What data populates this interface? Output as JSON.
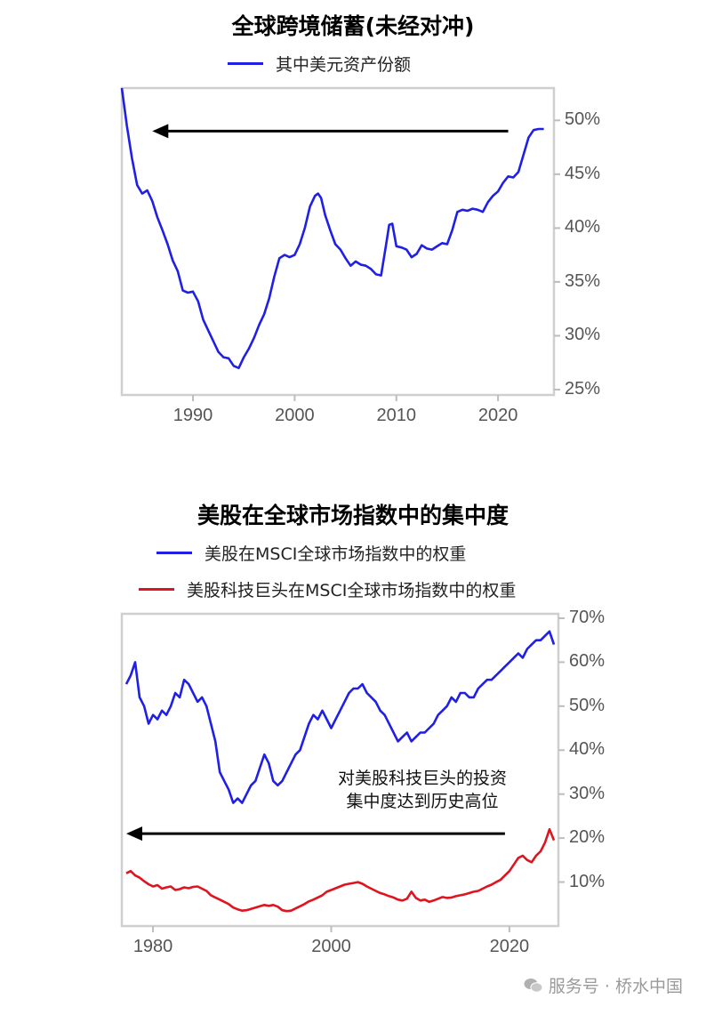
{
  "chart_data": [
    {
      "type": "line",
      "title": "全球跨境储蓄(未经对冲)",
      "legend": [
        {
          "name": "其中美元资产份额",
          "color": "#1f1fe6"
        }
      ],
      "ylim": [
        24.5,
        53
      ],
      "xlim": [
        1983,
        2025.5
      ],
      "yticks": [
        "50%",
        "45%",
        "40%",
        "35%",
        "30%",
        "25%"
      ],
      "ytick_values": [
        50,
        45,
        40,
        35,
        30,
        25
      ],
      "xticks": [
        "1990",
        "2000",
        "2010",
        "2020"
      ],
      "xtick_values": [
        1990,
        2000,
        2010,
        2020
      ],
      "arrow": {
        "from_year": 2021,
        "to_year": 1986,
        "value": 49.0
      },
      "series": [
        {
          "name": "其中美元资产份额",
          "x": [
            1983.0,
            1983.5,
            1984.0,
            1984.5,
            1985.0,
            1985.5,
            1986.0,
            1986.5,
            1987.0,
            1987.5,
            1988.0,
            1988.5,
            1989.0,
            1989.5,
            1990.0,
            1990.5,
            1991.0,
            1991.5,
            1992.0,
            1992.5,
            1993.0,
            1993.5,
            1994.0,
            1994.5,
            1995.0,
            1995.5,
            1996.0,
            1996.5,
            1997.0,
            1997.5,
            1998.0,
            1998.5,
            1999.0,
            1999.5,
            2000.0,
            2000.5,
            2001.0,
            2001.5,
            2002.0,
            2002.3,
            2002.6,
            2003.0,
            2003.5,
            2004.0,
            2004.5,
            2005.0,
            2005.5,
            2006.0,
            2006.5,
            2007.0,
            2007.5,
            2008.0,
            2008.5,
            2009.0,
            2009.3,
            2009.6,
            2010.0,
            2010.5,
            2011.0,
            2011.5,
            2012.0,
            2012.5,
            2013.0,
            2013.5,
            2014.0,
            2014.5,
            2015.0,
            2015.5,
            2016.0,
            2016.5,
            2017.0,
            2017.5,
            2018.0,
            2018.5,
            2019.0,
            2019.5,
            2020.0,
            2020.5,
            2021.0,
            2021.5,
            2022.0,
            2022.5,
            2023.0,
            2023.5,
            2024.0,
            2024.5
          ],
          "values": [
            53.0,
            49.5,
            46.5,
            44.0,
            43.2,
            43.5,
            42.5,
            41.0,
            39.8,
            38.5,
            37.0,
            36.0,
            34.2,
            34.0,
            34.1,
            33.2,
            31.5,
            30.5,
            29.5,
            28.5,
            28.0,
            27.9,
            27.2,
            27.0,
            28.0,
            28.8,
            29.8,
            31.0,
            32.0,
            33.5,
            35.5,
            37.2,
            37.5,
            37.3,
            37.5,
            38.5,
            40.0,
            42.0,
            43.0,
            43.2,
            42.8,
            41.2,
            39.8,
            38.5,
            38.0,
            37.2,
            36.5,
            36.9,
            36.6,
            36.5,
            36.2,
            35.7,
            35.6,
            38.5,
            40.3,
            40.4,
            38.3,
            38.2,
            38.0,
            37.3,
            37.6,
            38.4,
            38.1,
            38.0,
            38.3,
            38.6,
            38.5,
            39.8,
            41.5,
            41.7,
            41.6,
            41.8,
            41.7,
            41.5,
            42.4,
            43.0,
            43.4,
            44.2,
            44.8,
            44.7,
            45.2,
            46.8,
            48.4,
            49.1,
            49.2,
            49.2
          ]
        }
      ]
    },
    {
      "type": "line",
      "title": "美股在全球市场指数中的集中度",
      "legend": [
        {
          "name": "美股在MSCI全球市场指数中的权重",
          "color": "#1f1fe6"
        },
        {
          "name": "美股科技巨头在MSCI全球市场指数中的权重",
          "color": "#e0141e"
        }
      ],
      "ylim": [
        0,
        71
      ],
      "xlim": [
        1976.5,
        2025.5
      ],
      "yticks": [
        "70%",
        "60%",
        "50%",
        "40%",
        "30%",
        "20%",
        "10%"
      ],
      "ytick_values": [
        70,
        60,
        50,
        40,
        30,
        20,
        10
      ],
      "xticks": [
        "1980",
        "2000",
        "2020"
      ],
      "xtick_values": [
        1980,
        2000,
        2020
      ],
      "annotation": [
        "对美股科技巨头的投资",
        "集中度达到历史高位"
      ],
      "arrow": {
        "from_year": 2019.5,
        "to_year": 1977,
        "value": 21
      },
      "series": [
        {
          "name": "美股在MSCI全球市场指数中的权重",
          "x": [
            1977.0,
            1977.5,
            1978.0,
            1978.5,
            1979.0,
            1979.5,
            1980.0,
            1980.5,
            1981.0,
            1981.5,
            1982.0,
            1982.5,
            1983.0,
            1983.5,
            1984.0,
            1984.5,
            1985.0,
            1985.5,
            1986.0,
            1986.5,
            1987.0,
            1987.5,
            1988.0,
            1988.5,
            1989.0,
            1989.5,
            1990.0,
            1990.5,
            1991.0,
            1991.5,
            1992.0,
            1992.5,
            1993.0,
            1993.5,
            1994.0,
            1994.5,
            1995.0,
            1995.5,
            1996.0,
            1996.5,
            1997.0,
            1997.5,
            1998.0,
            1998.5,
            1999.0,
            1999.5,
            2000.0,
            2000.5,
            2001.0,
            2001.5,
            2002.0,
            2002.5,
            2003.0,
            2003.5,
            2004.0,
            2004.5,
            2005.0,
            2005.5,
            2006.0,
            2006.5,
            2007.0,
            2007.5,
            2008.0,
            2008.5,
            2009.0,
            2009.5,
            2010.0,
            2010.5,
            2011.0,
            2011.5,
            2012.0,
            2012.5,
            2013.0,
            2013.5,
            2014.0,
            2014.5,
            2015.0,
            2015.5,
            2016.0,
            2016.5,
            2017.0,
            2017.5,
            2018.0,
            2018.5,
            2019.0,
            2019.5,
            2020.0,
            2020.5,
            2021.0,
            2021.5,
            2022.0,
            2022.5,
            2023.0,
            2023.5,
            2024.0,
            2024.5,
            2025.0
          ],
          "values": [
            55,
            57,
            60,
            52,
            50,
            46,
            48,
            47,
            49,
            48,
            50,
            53,
            52,
            56,
            55,
            53,
            51,
            52,
            50,
            46,
            42,
            35,
            33,
            31,
            28,
            29,
            28,
            30,
            32,
            33,
            36,
            39,
            37,
            33,
            32,
            33,
            35,
            37,
            39,
            40,
            43,
            46,
            48,
            47,
            49,
            47,
            45,
            47,
            49,
            51,
            53,
            54,
            54,
            55,
            53,
            52,
            51,
            49,
            48,
            46,
            44,
            42,
            43,
            44,
            42,
            43,
            44,
            44,
            45,
            46,
            48,
            49,
            50,
            52,
            51,
            53,
            53,
            52,
            52,
            54,
            55,
            56,
            56,
            57,
            58,
            59,
            60,
            61,
            62,
            61,
            63,
            64,
            65,
            65,
            66,
            67,
            64
          ]
        },
        {
          "name": "美股科技巨头在MSCI全球市场指数中的权重",
          "x": [
            1977.0,
            1977.5,
            1978.0,
            1978.5,
            1979.0,
            1979.5,
            1980.0,
            1980.5,
            1981.0,
            1981.5,
            1982.0,
            1982.5,
            1983.0,
            1983.5,
            1984.0,
            1984.5,
            1985.0,
            1985.5,
            1986.0,
            1986.5,
            1987.0,
            1987.5,
            1988.0,
            1988.5,
            1989.0,
            1989.5,
            1990.0,
            1990.5,
            1991.0,
            1991.5,
            1992.0,
            1992.5,
            1993.0,
            1993.5,
            1994.0,
            1994.5,
            1995.0,
            1995.5,
            1996.0,
            1996.5,
            1997.0,
            1997.5,
            1998.0,
            1998.5,
            1999.0,
            1999.5,
            2000.0,
            2000.5,
            2001.0,
            2001.5,
            2002.0,
            2002.5,
            2003.0,
            2003.5,
            2004.0,
            2004.5,
            2005.0,
            2005.5,
            2006.0,
            2006.5,
            2007.0,
            2007.5,
            2008.0,
            2008.5,
            2009.0,
            2009.5,
            2010.0,
            2010.5,
            2011.0,
            2011.5,
            2012.0,
            2012.5,
            2013.0,
            2013.5,
            2014.0,
            2014.5,
            2015.0,
            2015.5,
            2016.0,
            2016.5,
            2017.0,
            2017.5,
            2018.0,
            2018.5,
            2019.0,
            2019.5,
            2020.0,
            2020.5,
            2021.0,
            2021.5,
            2022.0,
            2022.5,
            2023.0,
            2023.5,
            2024.0,
            2024.5,
            2025.0
          ],
          "values": [
            12.0,
            12.5,
            11.5,
            11.0,
            10.2,
            9.5,
            9.0,
            9.3,
            8.5,
            8.8,
            9.0,
            8.2,
            8.4,
            8.8,
            8.6,
            8.9,
            9.0,
            8.5,
            8.0,
            7.0,
            6.5,
            6.0,
            5.5,
            5.0,
            4.2,
            3.8,
            3.5,
            3.6,
            3.9,
            4.2,
            4.5,
            4.8,
            4.6,
            4.8,
            4.4,
            3.6,
            3.4,
            3.5,
            4.0,
            4.5,
            5.0,
            5.6,
            6.0,
            6.5,
            7.0,
            7.8,
            8.2,
            8.6,
            9.0,
            9.4,
            9.6,
            9.8,
            10.0,
            9.6,
            9.0,
            8.5,
            8.0,
            7.5,
            7.2,
            6.8,
            6.5,
            6.0,
            5.8,
            6.2,
            7.8,
            6.4,
            5.8,
            6.0,
            5.5,
            5.8,
            6.2,
            6.6,
            6.4,
            6.5,
            6.8,
            7.0,
            7.2,
            7.5,
            7.8,
            8.0,
            8.5,
            9.0,
            9.4,
            10.0,
            10.5,
            11.5,
            12.5,
            14.0,
            15.5,
            16.0,
            15.0,
            14.5,
            16.0,
            17.0,
            19.0,
            22.0,
            19.5
          ]
        }
      ]
    }
  ],
  "footer": {
    "watermark": "服务号 · 桥水中国"
  }
}
